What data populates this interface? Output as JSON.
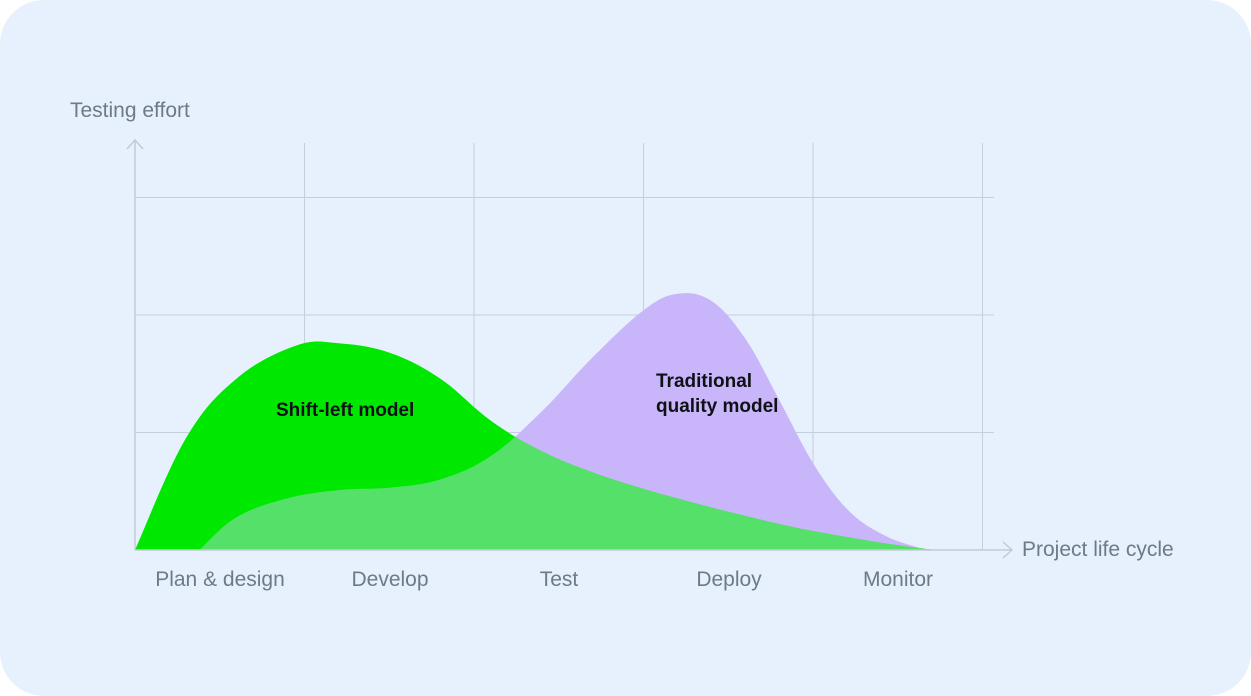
{
  "chart_data": {
    "type": "area",
    "title": "",
    "ylabel": "Testing effort",
    "xlabel": "Project life cycle",
    "categories": [
      "Plan & design",
      "Develop",
      "Test",
      "Deploy",
      "Monitor"
    ],
    "ylim": [
      0,
      3.5
    ],
    "grid": true,
    "series": [
      {
        "name_lines": [
          "Shift-left model"
        ],
        "color": "#00e800",
        "x": [
          0,
          0.3,
          0.6,
          0.95,
          1.2,
          1.5,
          1.8,
          2.1,
          2.4,
          2.7,
          3.0,
          3.3,
          3.6,
          3.9,
          4.2,
          4.5,
          4.72
        ],
        "values": [
          0,
          0.95,
          1.46,
          1.74,
          1.76,
          1.68,
          1.46,
          1.1,
          0.84,
          0.66,
          0.52,
          0.4,
          0.29,
          0.19,
          0.11,
          0.04,
          0
        ]
      },
      {
        "name_lines": [
          "Traditional",
          "quality model"
        ],
        "color": "#c9b5fa",
        "x": [
          0.38,
          0.6,
          0.9,
          1.2,
          1.5,
          1.8,
          2.1,
          2.4,
          2.7,
          3.0,
          3.2,
          3.4,
          3.6,
          3.8,
          4.0,
          4.2,
          4.4,
          4.6,
          4.72
        ],
        "values": [
          0,
          0.28,
          0.44,
          0.51,
          0.53,
          0.6,
          0.8,
          1.18,
          1.64,
          2.04,
          2.18,
          2.12,
          1.8,
          1.28,
          0.74,
          0.35,
          0.14,
          0.03,
          0
        ]
      }
    ],
    "overlap_color": "#55e169",
    "axis_color": "#c3cad3",
    "grid_color": "#c7cfdd"
  }
}
